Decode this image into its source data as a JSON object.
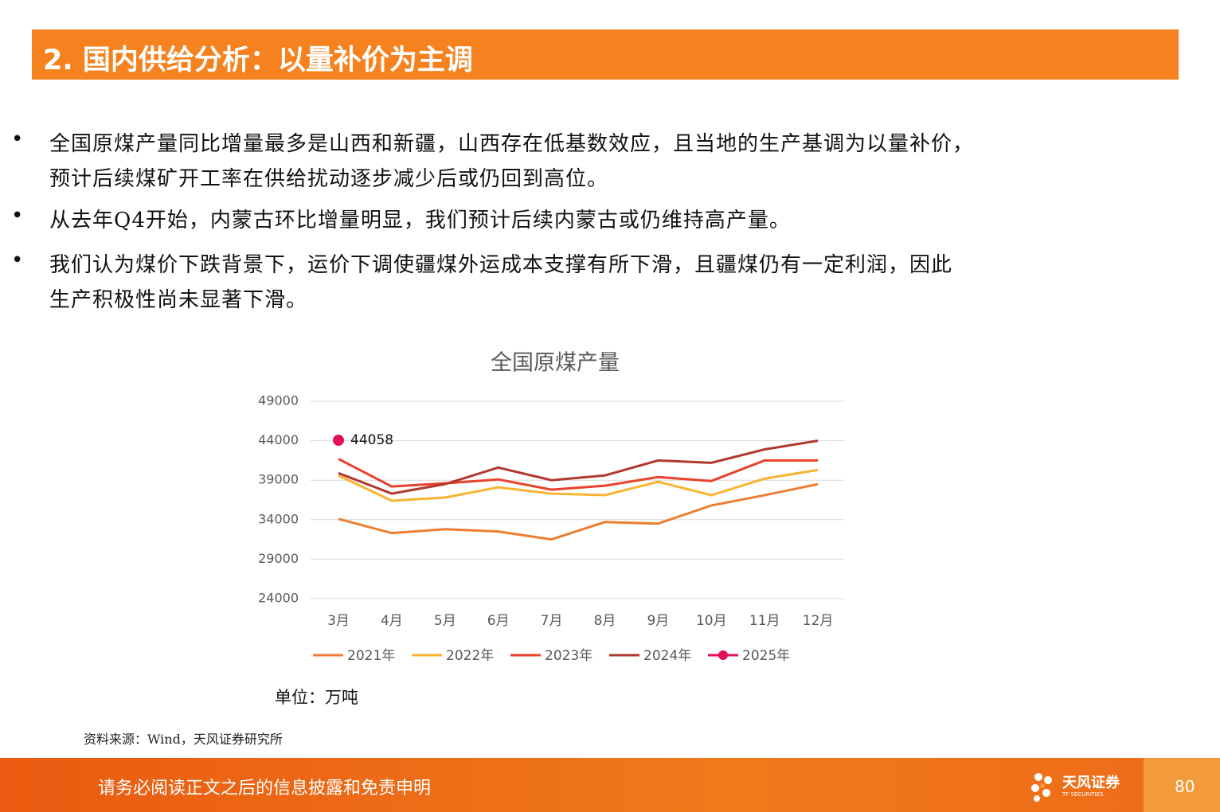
{
  "header": {
    "title": "2. 国内供给分析：以量补价为主调"
  },
  "bullets": [
    [
      "全国原煤产量同比增量最多是山西和新疆，山西存在低基数效应，且当地的生产基调为以量补价，",
      "预计后续煤矿开工率在供给扰动逐步减少后或仍回到高位。"
    ],
    [
      "从去年Q4开始，内蒙古环比增量明显，我们预计后续内蒙古或仍维持高产量。"
    ],
    [
      "我们认为煤价下跌背景下，运价下调使疆煤外运成本支撑有所下滑，且疆煤仍有一定利润，因此",
      "生产积极性尚未显著下滑。"
    ]
  ],
  "chart_data": {
    "type": "line",
    "title": "全国原煤产量",
    "categories": [
      "3月",
      "4月",
      "5月",
      "6月",
      "7月",
      "8月",
      "9月",
      "10月",
      "11月",
      "12月"
    ],
    "series": [
      {
        "name": "2021年",
        "color": "#ed7d31",
        "values": [
          34100,
          32300,
          32800,
          32500,
          31500,
          33700,
          33500,
          35800,
          37100,
          38500
        ]
      },
      {
        "name": "2022年",
        "color": "#f8b430",
        "values": [
          39600,
          36400,
          36800,
          38100,
          37300,
          37100,
          38800,
          37100,
          39200,
          40300
        ]
      },
      {
        "name": "2023年",
        "color": "#e8412c",
        "values": [
          41700,
          38200,
          38600,
          39100,
          37800,
          38300,
          39400,
          38900,
          41500,
          41500
        ]
      },
      {
        "name": "2024年",
        "color": "#b0392e",
        "values": [
          39900,
          37300,
          38500,
          40600,
          39000,
          39600,
          41500,
          41200,
          42900,
          44000
        ]
      },
      {
        "name": "2025年",
        "color": "#e0105a",
        "values": [
          44058,
          null,
          null,
          null,
          null,
          null,
          null,
          null,
          null,
          null
        ],
        "marker": true,
        "data_labels": true
      }
    ],
    "ylim": [
      24000,
      49000
    ],
    "yticks": [
      24000,
      29000,
      34000,
      39000,
      44000,
      49000
    ],
    "grid": true,
    "legend": "bottom"
  },
  "unit": "单位：万吨",
  "source": "资料来源：Wind，天风证券研究所",
  "footer": {
    "disclaimer": "请务必阅读正文之后的信息披露和免责申明",
    "brand": "天风证券",
    "brand_en": "TF SECURITIES",
    "page": "80"
  }
}
